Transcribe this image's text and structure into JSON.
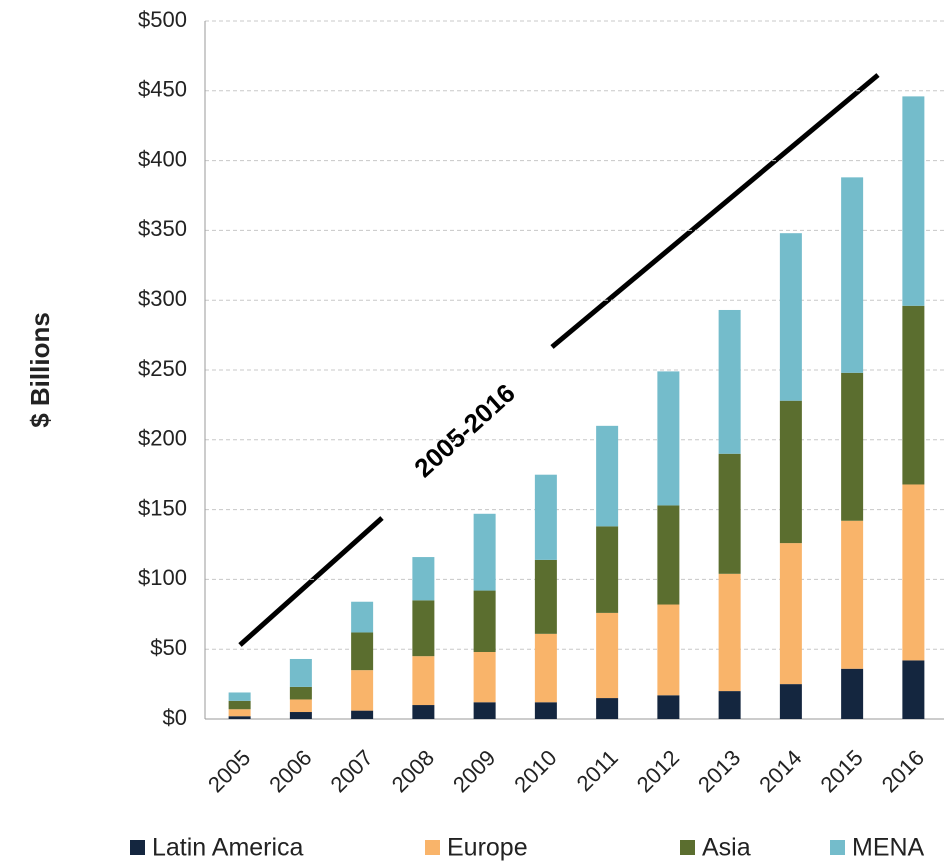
{
  "chart_data": {
    "type": "stacked_bar",
    "y_label": "$ Billions",
    "annotation": "2005-2016",
    "categories": [
      "2005",
      "2006",
      "2007",
      "2008",
      "2009",
      "2010",
      "2011",
      "2012",
      "2013",
      "2014",
      "2015",
      "2016"
    ],
    "series": [
      {
        "name": "Latin America",
        "color": "#14263f",
        "values": [
          2,
          5,
          6,
          10,
          12,
          12,
          15,
          17,
          20,
          25,
          36,
          42
        ]
      },
      {
        "name": "Europe",
        "color": "#f9b46a",
        "values": [
          5,
          9,
          29,
          35,
          36,
          49,
          61,
          65,
          84,
          101,
          106,
          126
        ]
      },
      {
        "name": "Asia",
        "color": "#5b6e2f",
        "values": [
          6,
          9,
          27,
          40,
          44,
          53,
          62,
          71,
          86,
          102,
          106,
          128
        ]
      },
      {
        "name": "MENA",
        "color": "#74bccb",
        "values": [
          6,
          20,
          22,
          31,
          55,
          61,
          72,
          96,
          103,
          120,
          140,
          150
        ]
      }
    ],
    "ylim": [
      0,
      500
    ],
    "yticks": [
      {
        "value": 0,
        "label": "$0"
      },
      {
        "value": 50,
        "label": "$50"
      },
      {
        "value": 100,
        "label": "$100"
      },
      {
        "value": 150,
        "label": "$150"
      },
      {
        "value": 200,
        "label": "$200"
      },
      {
        "value": 250,
        "label": "$250"
      },
      {
        "value": 300,
        "label": "$300"
      },
      {
        "value": 350,
        "label": "$350"
      },
      {
        "value": 400,
        "label": "$400"
      },
      {
        "value": 450,
        "label": "$450"
      },
      {
        "value": 500,
        "label": "$500"
      }
    ],
    "grid": true,
    "legend": "bottom"
  }
}
